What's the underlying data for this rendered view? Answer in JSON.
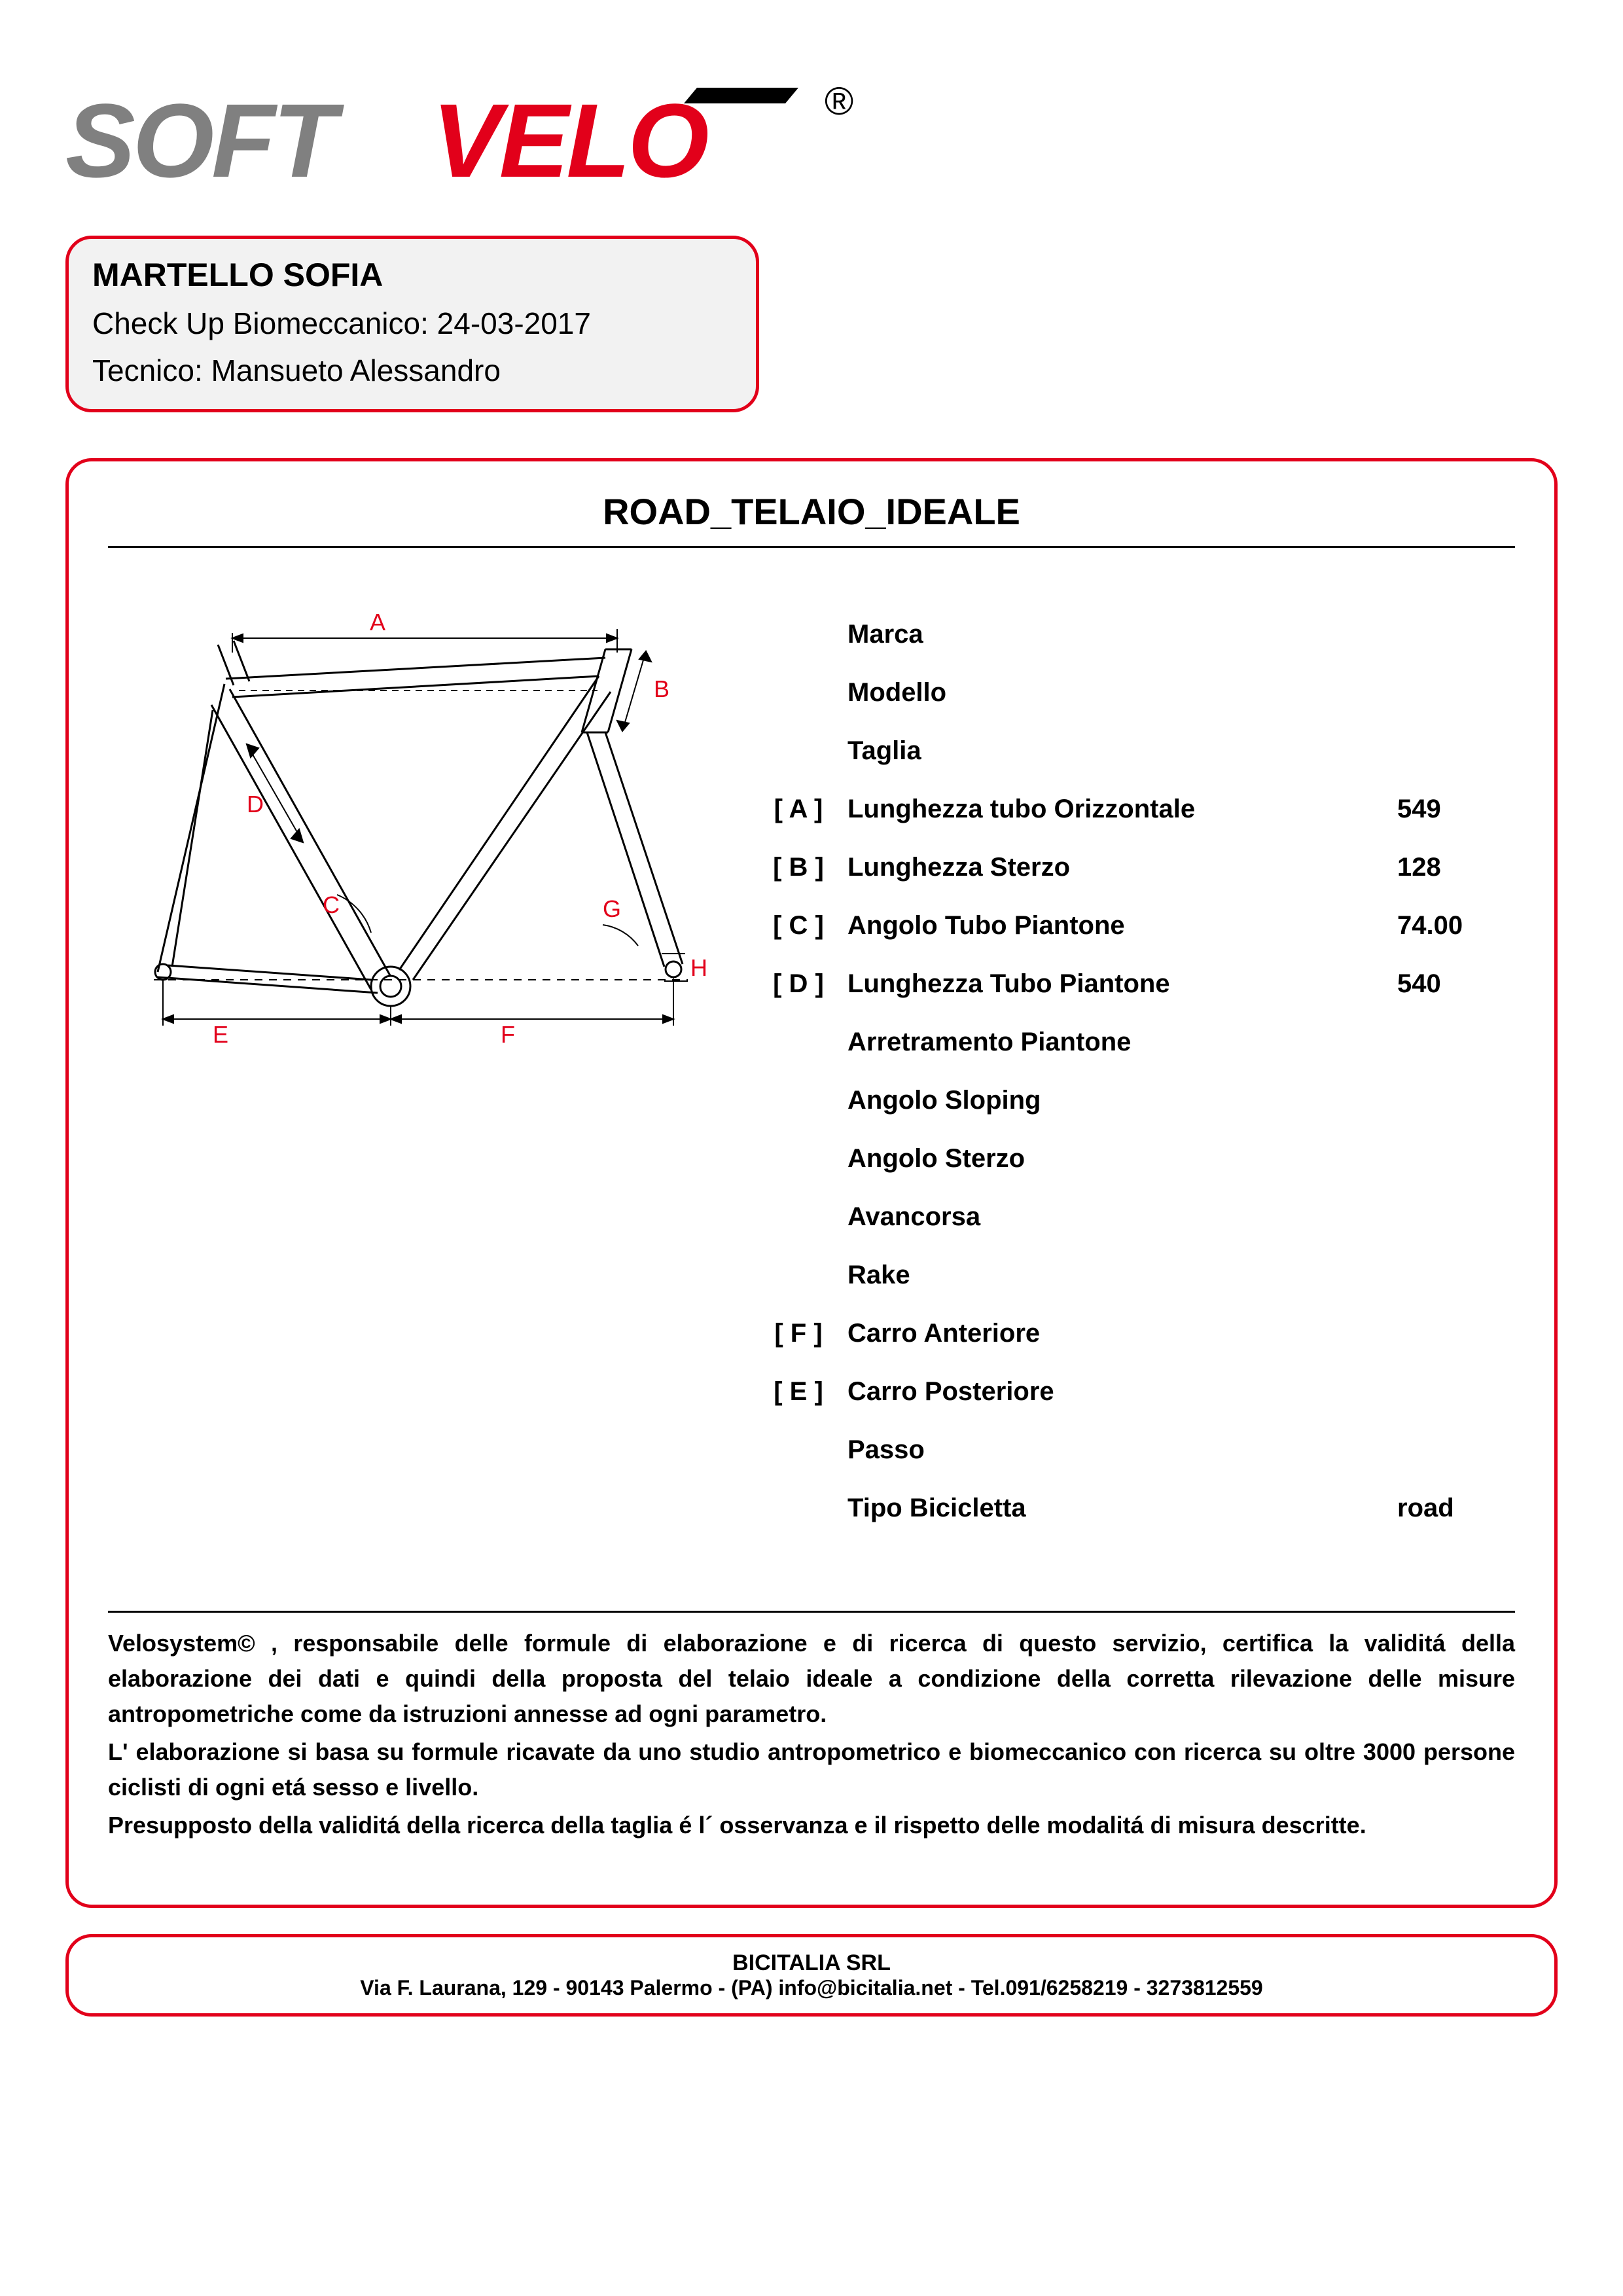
{
  "logo": {
    "part1": "SOFT",
    "part2": "VELO",
    "part1_color": "#808080",
    "part2_color": "#e2001a",
    "reg_mark": "®"
  },
  "header": {
    "client_name": "MARTELLO SOFIA",
    "checkup_label": "Check Up Biomeccanico:",
    "checkup_date": "24-03-2017",
    "technician_label": "Tecnico:",
    "technician_name": "Mansueto Alessandro",
    "border_color": "#e2001a",
    "bg_color": "#f2f2f2"
  },
  "main": {
    "title": "ROAD_TELAIO_IDEALE",
    "rows": [
      {
        "key": "",
        "label": "Marca",
        "value": ""
      },
      {
        "key": "",
        "label": "Modello",
        "value": ""
      },
      {
        "key": "",
        "label": "Taglia",
        "value": ""
      },
      {
        "key": "[ A ]",
        "label": "Lunghezza tubo Orizzontale",
        "value": "549"
      },
      {
        "key": "[ B ]",
        "label": "Lunghezza Sterzo",
        "value": "128"
      },
      {
        "key": "[ C ]",
        "label": "Angolo Tubo Piantone",
        "value": "74.00"
      },
      {
        "key": "[ D ]",
        "label": "Lunghezza Tubo Piantone",
        "value": "540"
      },
      {
        "key": "",
        "label": "Arretramento Piantone",
        "value": ""
      },
      {
        "key": "",
        "label": "Angolo Sloping",
        "value": ""
      },
      {
        "key": "",
        "label": "Angolo Sterzo",
        "value": ""
      },
      {
        "key": "",
        "label": "Avancorsa",
        "value": ""
      },
      {
        "key": "",
        "label": "Rake",
        "value": ""
      },
      {
        "key": "[ F ]",
        "label": "Carro Anteriore",
        "value": ""
      },
      {
        "key": "[ E ]",
        "label": "Carro Posteriore",
        "value": ""
      },
      {
        "key": "",
        "label": "Passo",
        "value": ""
      },
      {
        "key": "",
        "label": "Tipo Bicicletta",
        "value": "road"
      }
    ]
  },
  "diagram": {
    "outline_color": "#000000",
    "label_color": "#e2001a",
    "bg_color": "#ffffff",
    "labels": {
      "A": "A",
      "B": "B",
      "C": "C",
      "D": "D",
      "E": "E",
      "F": "F",
      "G": "G",
      "H": "H"
    }
  },
  "disclaimer": {
    "p1": "Velosystem© , responsabile delle formule di elaborazione e di ricerca di questo servizio, certifica la validitá della elaborazione dei dati e quindi della proposta del telaio ideale a condizione della corretta rilevazione delle misure antropometriche come da istruzioni annesse ad ogni parametro.",
    "p2": "L' elaborazione si basa su formule ricavate da uno studio antropometrico e biomeccanico con ricerca su oltre 3000 persone ciclisti di ogni etá sesso e livello.",
    "p3": "Presupposto della validitá della ricerca della taglia é l´ osservanza e il rispetto delle modalitá di misura descritte."
  },
  "footer": {
    "company": "BICITALIA SRL",
    "address": "Via F. Laurana, 129 - 90143 Palermo - (PA) info@bicitalia.net - Tel.091/6258219 - 3273812559"
  }
}
